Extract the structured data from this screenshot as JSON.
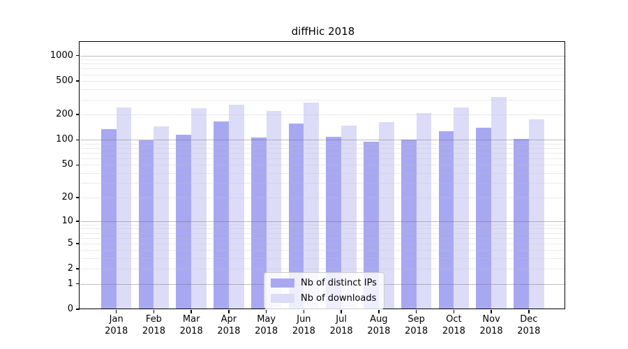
{
  "chart_data": {
    "type": "bar",
    "title": "diffHic 2018",
    "categories": [
      "Jan 2018",
      "Feb 2018",
      "Mar 2018",
      "Apr 2018",
      "May 2018",
      "Jun 2018",
      "Jul 2018",
      "Aug 2018",
      "Sep 2018",
      "Oct 2018",
      "Nov 2018",
      "Dec 2018"
    ],
    "series": [
      {
        "name": "Nb of distinct IPs",
        "color": "#a8a8f2",
        "values": [
          135,
          98,
          115,
          167,
          107,
          155,
          108,
          95,
          100,
          126,
          140,
          103
        ]
      },
      {
        "name": "Nb of downloads",
        "color": "#dcdcf8",
        "values": [
          242,
          144,
          236,
          263,
          220,
          277,
          148,
          164,
          207,
          244,
          324,
          177
        ]
      }
    ],
    "y_axis": {
      "scale": "log1p",
      "tick_labels": [
        "1000",
        "500",
        "200",
        "100",
        "50",
        "20",
        "10",
        "5",
        "2",
        "1",
        "0"
      ],
      "tick_values": [
        1000,
        500,
        200,
        100,
        50,
        20,
        10,
        5,
        2,
        1,
        0
      ],
      "grid": "on"
    },
    "legend_position": "lower center"
  },
  "colors": {
    "bar_ips": "#a8a8f2",
    "bar_downloads": "#dcdcf8",
    "major_grid": "#c6c6c6",
    "minor_grid": "#e9e9e9",
    "axis": "#000000",
    "background": "#ffffff"
  }
}
